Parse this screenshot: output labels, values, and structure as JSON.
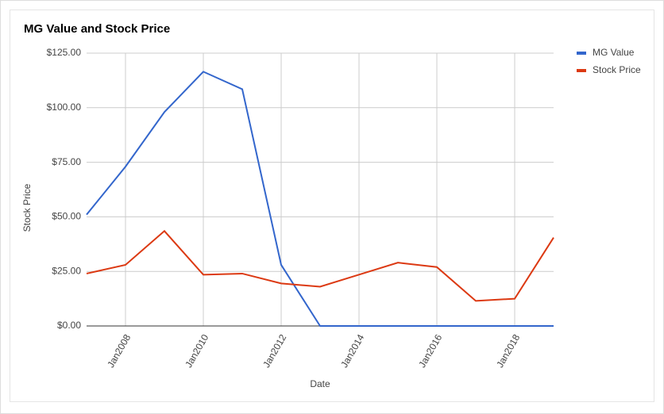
{
  "chart_data": {
    "type": "line",
    "title": "MG Value and Stock Price",
    "x_label": "Date",
    "y_label": "Stock Price",
    "x": [
      2007,
      2008,
      2009,
      2010,
      2011,
      2012,
      2013,
      2014,
      2015,
      2016,
      2017,
      2018,
      2019
    ],
    "series": [
      {
        "name": "MG Value",
        "color": "#3366cc",
        "values": [
          51,
          73,
          98,
          116.5,
          108.5,
          28,
          0,
          0,
          0,
          0,
          0,
          0,
          0
        ]
      },
      {
        "name": "Stock Price",
        "color": "#dc3912",
        "values": [
          24,
          28,
          43.5,
          23.5,
          24,
          19.5,
          18,
          23.5,
          29,
          27,
          11.5,
          12.5,
          40.5
        ]
      }
    ],
    "xlim": [
      2007,
      2019
    ],
    "xticks": [
      {
        "value": 2008,
        "label": "Jan2008"
      },
      {
        "value": 2010,
        "label": "Jan2010"
      },
      {
        "value": 2012,
        "label": "Jan2012"
      },
      {
        "value": 2014,
        "label": "Jan2014"
      },
      {
        "value": 2016,
        "label": "Jan2016"
      },
      {
        "value": 2018,
        "label": "Jan2018"
      }
    ],
    "ylim": [
      0,
      125
    ],
    "yticks": [
      {
        "value": 0,
        "label": "$0.00"
      },
      {
        "value": 25,
        "label": "$25.00"
      },
      {
        "value": 50,
        "label": "$50.00"
      },
      {
        "value": 75,
        "label": "$75.00"
      },
      {
        "value": 100,
        "label": "$100.00"
      },
      {
        "value": 125,
        "label": "$125.00"
      }
    ],
    "grid": true,
    "legend_position": "right"
  }
}
